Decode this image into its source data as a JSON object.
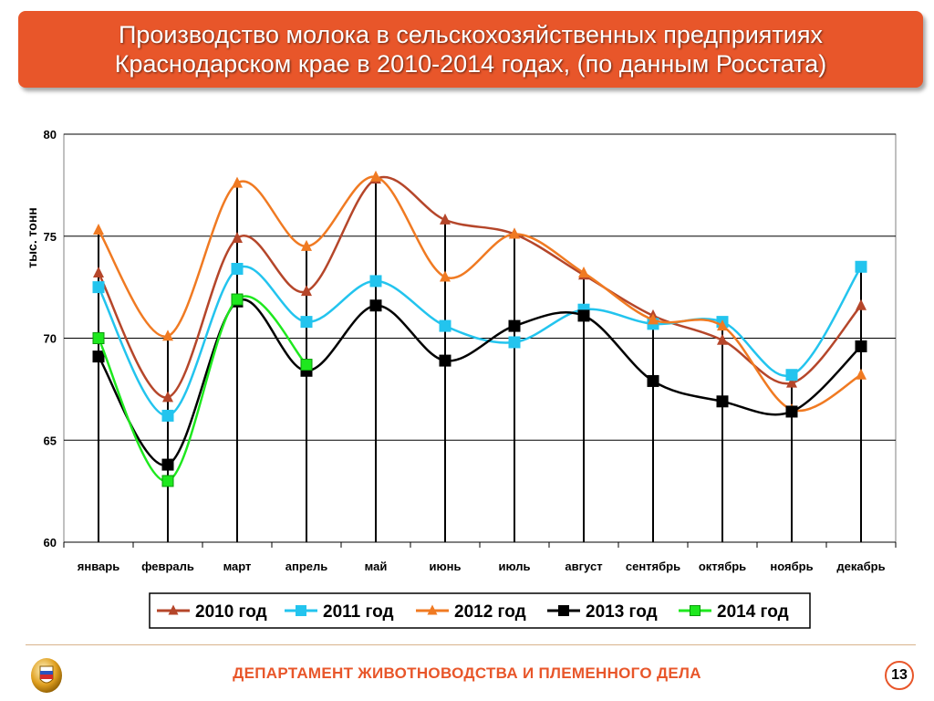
{
  "header": {
    "title_line1": "Производство молока в сельскохозяйственных предприятиях",
    "title_line2": "Краснодарском крае в 2010-2014 годах, (по данным Росстата)"
  },
  "chart_data": {
    "type": "line",
    "title": "Производство молока в сельскохозяйственных предприятиях Краснодарском крае в 2010-2014 годах, (по данным Росстата)",
    "ylabel": "тыс. тонн",
    "xlabel": "",
    "ylim": [
      60,
      80
    ],
    "yticks": [
      60,
      65,
      70,
      75,
      80
    ],
    "grid": true,
    "legend_position": "bottom",
    "categories": [
      "январь",
      "февраль",
      "март",
      "апрель",
      "май",
      "июнь",
      "июль",
      "август",
      "сентябрь",
      "октябрь",
      "ноябрь",
      "декабрь"
    ],
    "series": [
      {
        "name": "2010 год",
        "color": "#b5462a",
        "marker": "triangle",
        "values": [
          73.2,
          67.1,
          74.9,
          72.3,
          77.8,
          75.8,
          75.1,
          73.1,
          71.1,
          69.9,
          67.8,
          71.6
        ]
      },
      {
        "name": "2011 год",
        "color": "#23c4ee",
        "marker": "square",
        "values": [
          72.5,
          66.2,
          73.4,
          70.8,
          72.8,
          70.6,
          69.8,
          71.4,
          70.7,
          70.8,
          68.2,
          73.5
        ]
      },
      {
        "name": "2012 год",
        "color": "#f07a22",
        "marker": "triangle",
        "values": [
          75.3,
          70.1,
          77.6,
          74.5,
          77.9,
          73.0,
          75.1,
          73.2,
          70.9,
          70.6,
          66.5,
          68.2
        ]
      },
      {
        "name": "2013 год",
        "color": "#000000",
        "marker": "square",
        "values": [
          69.1,
          63.8,
          71.8,
          68.4,
          71.6,
          68.9,
          70.6,
          71.1,
          67.9,
          66.9,
          66.4,
          69.6
        ]
      },
      {
        "name": "2014 год",
        "color": "#1ee81e",
        "marker": "square",
        "values": [
          70.0,
          63.0,
          71.9,
          68.7,
          null,
          null,
          null,
          null,
          null,
          null,
          null,
          null
        ]
      }
    ]
  },
  "footer": {
    "department": "ДЕПАРТАМЕНТ ЖИВОТНОВОДСТВА И ПЛЕМЕННОГО ДЕЛА",
    "page_number": "13"
  },
  "icons": {
    "logo": "emblem-icon"
  }
}
